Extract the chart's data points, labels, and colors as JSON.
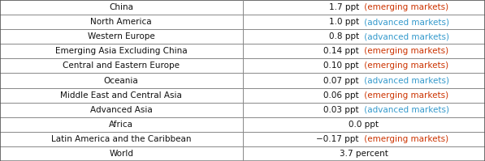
{
  "rows": [
    {
      "region": "China",
      "value": "1.7 ppt",
      "market_type": "emerging markets"
    },
    {
      "region": "North America",
      "value": "1.0 ppt",
      "market_type": "advanced markets"
    },
    {
      "region": "Western Europe",
      "value": "0.8 ppt",
      "market_type": "advanced markets"
    },
    {
      "region": "Emerging Asia Excluding China",
      "value": "0.14 ppt",
      "market_type": "emerging markets"
    },
    {
      "region": "Central and Eastern Europe",
      "value": "0.10 ppt",
      "market_type": "emerging markets"
    },
    {
      "region": "Oceania",
      "value": "0.07 ppt",
      "market_type": "advanced markets"
    },
    {
      "region": "Middle East and Central Asia",
      "value": "0.06 ppt",
      "market_type": "emerging markets"
    },
    {
      "region": "Advanced Asia",
      "value": "0.03 ppt",
      "market_type": "advanced markets"
    },
    {
      "region": "Africa",
      "value": "0.0 ppt",
      "market_type": null
    },
    {
      "region": "Latin America and the Caribbean",
      "value": "−0.17 ppt",
      "market_type": "emerging markets"
    },
    {
      "region": "World",
      "value": "3.7 percent",
      "market_type": null
    }
  ],
  "emerging_color": "#cc3300",
  "advanced_color": "#3399cc",
  "text_color": "#111111",
  "border_color": "#888888",
  "outer_border_color": "#555555",
  "bg_color": "#ffffff",
  "font_size": 7.5,
  "col_split": 0.5,
  "fig_width": 5.97,
  "fig_height": 1.99,
  "dpi": 100
}
